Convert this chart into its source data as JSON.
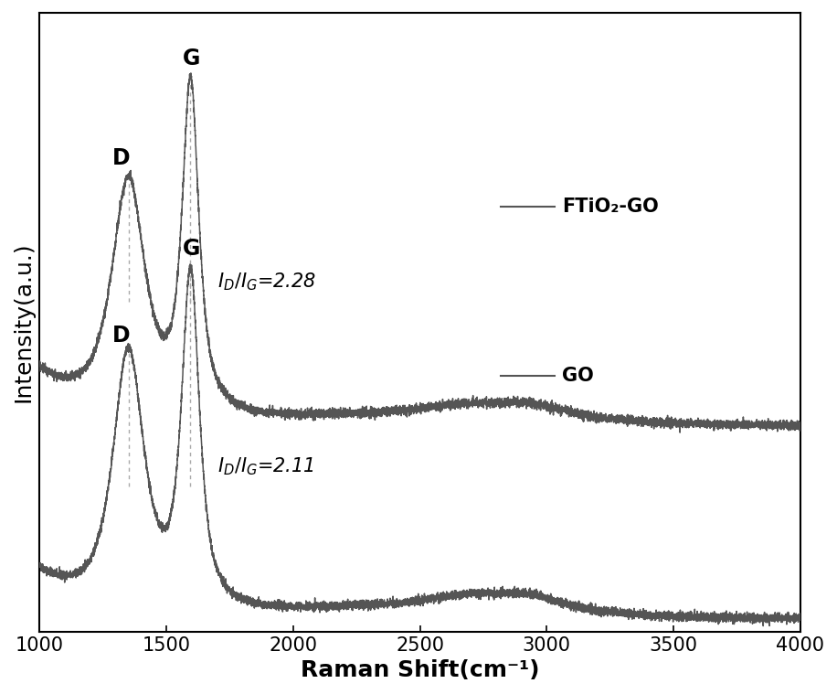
{
  "xlabel": "Raman Shift(cm⁻¹)",
  "ylabel": "Intensity(a.u.)",
  "xlim": [
    1000,
    4000
  ],
  "x_ticks": [
    1000,
    1500,
    2000,
    2500,
    3000,
    3500,
    4000
  ],
  "line_color": "#555555",
  "dashed_color": "#aaaaaa",
  "background_color": "#ffffff",
  "D_peak_go": 1350,
  "G_peak_go": 1595,
  "D_peak_ftio2": 1350,
  "G_peak_ftio2": 1595,
  "font_size_axis_label": 18,
  "font_size_tick": 15,
  "font_size_annotation": 15,
  "font_size_legend": 15,
  "font_size_peak_label": 17,
  "legend_ftio2": "FTiO₂-GO",
  "legend_go": "GO"
}
